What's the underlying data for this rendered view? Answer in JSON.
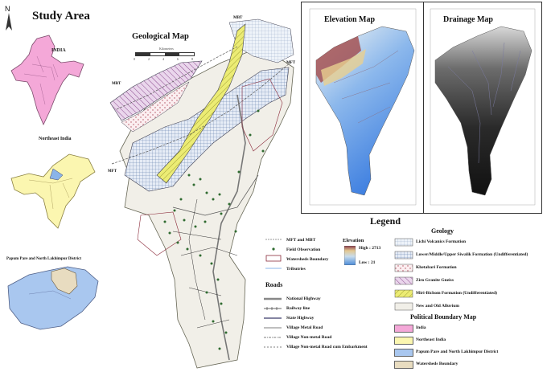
{
  "study_area": {
    "title": "Study Area",
    "north_letter": "N",
    "india_label": "INDIA",
    "northeast_label": "Northeast India",
    "district_label": "Papum Pare and North Lakhimpur District"
  },
  "geological_map": {
    "title": "Geological Map",
    "scale_title": "Kilometers",
    "scale_ticks": [
      "0",
      "2",
      "4",
      "6",
      "8"
    ],
    "fault_labels": [
      "MBT",
      "MFT",
      "MBT",
      "MFT"
    ]
  },
  "elevation_map": {
    "title": "Elevation Map"
  },
  "drainage_map": {
    "title": "Drainage Map"
  },
  "legend": {
    "title": "Legend",
    "lines": [
      {
        "label": "MFT and MBT"
      },
      {
        "label": "Field Observation"
      },
      {
        "label": "Watersheds Boundary"
      },
      {
        "label": "Tributries"
      }
    ],
    "elevation": {
      "title": "Elevation",
      "high": "High : 2713",
      "low": "Low : 21"
    },
    "roads_title": "Roads",
    "roads": [
      {
        "label": "National Highway"
      },
      {
        "label": "Railway line"
      },
      {
        "label": "State Highway"
      },
      {
        "label": "Village Metal Road"
      },
      {
        "label": "Village Non-metal Road"
      },
      {
        "label": "Village Non-metal Road cum Embarkment"
      }
    ],
    "geology_title": "Geology",
    "geology": [
      {
        "label": "Lichi Volcanics Formation"
      },
      {
        "label": "Lower/Middle/Upper Siwalik Formation (Undifferentiated)"
      },
      {
        "label": "Khetabari Formation"
      },
      {
        "label": "Ziro Granite Gneiss"
      },
      {
        "label": "Miri-Bichom Formation (Undifferentiated)"
      },
      {
        "label": "New and Old Alluvium"
      }
    ],
    "boundary_title": "Political Boundary Map",
    "boundaries": [
      {
        "label": "India",
        "color": "#f4a8d8"
      },
      {
        "label": "Northeast India",
        "color": "#fbf6b0"
      },
      {
        "label": "Papum Pare and North Lakhimpur District",
        "color": "#a9c7ef"
      },
      {
        "label": "Watersheds Boundary",
        "color": "#e8dcc0"
      }
    ]
  }
}
